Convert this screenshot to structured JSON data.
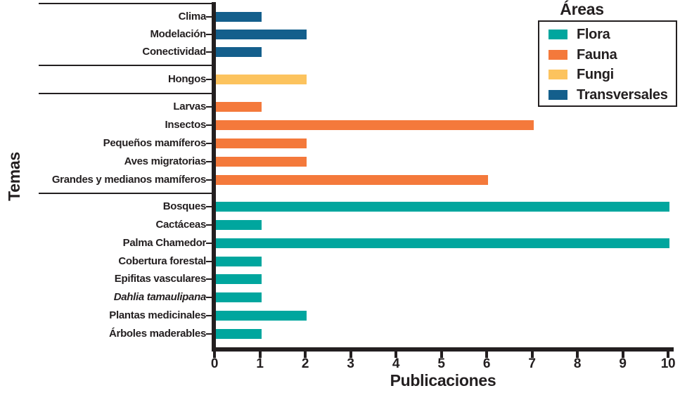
{
  "chart_data": {
    "type": "bar",
    "orientation": "horizontal",
    "ylabel": "Temas",
    "xlabel": "Publicaciones",
    "xlim": [
      0,
      10
    ],
    "xticks": [
      0,
      1,
      2,
      3,
      4,
      5,
      6,
      7,
      8,
      9,
      10
    ],
    "grid": false,
    "legend_title": "Áreas",
    "legend_position": "top-right",
    "legend": [
      {
        "label": "Flora",
        "color": "#00A69E"
      },
      {
        "label": "Fauna",
        "color": "#F4793B"
      },
      {
        "label": "Fungi",
        "color": "#FCC35E"
      },
      {
        "label": "Transversales",
        "color": "#145F8C"
      }
    ],
    "groups": [
      {
        "area": "Transversales",
        "color": "#145F8C",
        "items": [
          {
            "label": "Clima",
            "value": 1
          },
          {
            "label": "Modelación",
            "value": 2
          },
          {
            "label": "Conectividad",
            "value": 1
          }
        ]
      },
      {
        "area": "Fungi",
        "color": "#FCC35E",
        "items": [
          {
            "label": "Hongos",
            "value": 2
          }
        ]
      },
      {
        "area": "Fauna",
        "color": "#F4793B",
        "items": [
          {
            "label": "Larvas",
            "value": 1
          },
          {
            "label": "Insectos",
            "value": 7
          },
          {
            "label": "Pequeños mamíferos",
            "value": 2
          },
          {
            "label": "Aves migratorias",
            "value": 2
          },
          {
            "label": "Grandes y medianos mamíferos",
            "value": 6
          }
        ]
      },
      {
        "area": "Flora",
        "color": "#00A69E",
        "items": [
          {
            "label": "Bosques",
            "value": 10
          },
          {
            "label": "Cactáceas",
            "value": 1
          },
          {
            "label": "Palma Chamedor",
            "value": 10
          },
          {
            "label": "Cobertura forestal",
            "value": 1
          },
          {
            "label": "Epifitas vasculares",
            "value": 1
          },
          {
            "label": "Dahlia tamaulipana",
            "value": 1,
            "italic": true
          },
          {
            "label": "Plantas medicinales",
            "value": 2
          },
          {
            "label": "Árboles maderables",
            "value": 1
          }
        ]
      }
    ],
    "colors": {
      "axis": "#231F20",
      "text": "#231F20"
    }
  }
}
